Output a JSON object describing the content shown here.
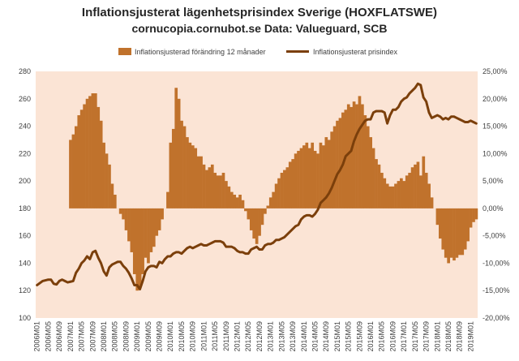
{
  "chart_data": {
    "type": "bar+line",
    "title": "Inflationsjusterat lägenhetsprisindex Sverige (HOXFLATSWE)",
    "subtitle": "cornucopia.cornubot.se Data: Valueguard, SCB",
    "legend": {
      "position": "top",
      "items": [
        {
          "label": "Inflationsjusterad förändring 12 månader",
          "color": "#c0722c",
          "kind": "bar"
        },
        {
          "label": "Inflationsjusterat prisindex",
          "color": "#7b3f0b",
          "kind": "line"
        }
      ]
    },
    "y_left": {
      "min": 100,
      "max": 280,
      "ticks": [
        "100",
        "120",
        "140",
        "160",
        "180",
        "200",
        "220",
        "240",
        "260",
        "280"
      ]
    },
    "y_right": {
      "min": -20,
      "max": 25,
      "ticks": [
        "-20,00%",
        "-15,00%",
        "-10,00%",
        "-5,00%",
        "0,00%",
        "5,00%",
        "10,00%",
        "15,00%",
        "20,00%",
        "25,00%"
      ]
    },
    "x_start": {
      "year": 2006,
      "month": 1
    },
    "x_tick_labels": [
      "2006M01",
      "2006M05",
      "2006M09",
      "2007M01",
      "2007M05",
      "2007M09",
      "2008M01",
      "2008M05",
      "2008M09",
      "2009M01",
      "2009M05",
      "2009M09",
      "2010M01",
      "2010M05",
      "2010M09",
      "2011M01",
      "2011M05",
      "2011M09",
      "2012M01",
      "2012M05",
      "2012M09",
      "2013M01",
      "2013M05",
      "2013M09",
      "2014M01",
      "2014M05",
      "2014M09",
      "2015M01",
      "2015M05",
      "2015M09",
      "2016M01",
      "2016M05",
      "2016M09",
      "2017M01",
      "2017M05",
      "2017M09",
      "2018M01",
      "2018M05",
      "2018M09",
      "2019M01"
    ],
    "series": [
      {
        "name": "Inflationsjusterad förändring 12 månader",
        "axis": "right",
        "unit": "%",
        "values": [
          null,
          null,
          null,
          null,
          null,
          null,
          null,
          null,
          null,
          null,
          null,
          null,
          12.5,
          13.5,
          15,
          17,
          18,
          19,
          20,
          20.5,
          21,
          21,
          18.5,
          16,
          12,
          10,
          8,
          4.5,
          2.5,
          0,
          -1,
          -2,
          -4,
          -6,
          -8,
          -12,
          -15,
          -14.5,
          -12,
          -9,
          -10,
          -8,
          -7,
          -5,
          -4,
          -2,
          0,
          3,
          12,
          14.5,
          22,
          20,
          16,
          15,
          13,
          12,
          11.5,
          11,
          9.5,
          9.5,
          8,
          7,
          7.5,
          8,
          6.5,
          6,
          6,
          6.5,
          5,
          4,
          3,
          2.5,
          2,
          2.5,
          1.5,
          -0.5,
          -2,
          -4,
          -5.5,
          -6.5,
          -5,
          -3,
          -1,
          0.5,
          2,
          3,
          4.5,
          5.5,
          6.5,
          7,
          7.5,
          8.5,
          9,
          10,
          10.5,
          11,
          11.5,
          12,
          11,
          12,
          10.5,
          10,
          12,
          11.5,
          13,
          12.5,
          14,
          15,
          16,
          16.5,
          17.5,
          18,
          19,
          18.5,
          19.5,
          19,
          20.5,
          19,
          17,
          15,
          13,
          11,
          9,
          8,
          6.5,
          5.5,
          4.5,
          4,
          4,
          4.5,
          5,
          5.5,
          5,
          6,
          6.5,
          7.5,
          8,
          8.5,
          6,
          9.5,
          6.5,
          4.5,
          2,
          0,
          -3,
          -5.5,
          -7.5,
          -9,
          -10,
          -9,
          -9.5,
          -9,
          -8.5,
          -8.5,
          -7.5,
          -6,
          -3.5,
          -2.5,
          -2
        ]
      },
      {
        "name": "Inflationsjusterat prisindex",
        "axis": "left",
        "values": [
          124,
          125.5,
          127,
          127.5,
          128,
          128,
          125,
          124.5,
          127,
          128,
          127,
          126,
          126.5,
          127,
          133,
          136,
          140,
          142,
          145,
          143,
          148,
          149,
          144,
          140,
          134,
          131,
          137,
          139,
          140,
          141,
          141,
          138,
          136,
          133,
          129,
          124,
          124,
          121,
          127,
          134,
          137,
          138,
          138,
          137,
          141,
          140,
          143,
          145,
          145,
          147,
          148,
          148,
          147,
          149,
          151,
          152,
          151,
          152,
          153,
          154,
          153,
          153,
          154,
          155,
          156,
          156,
          156,
          155,
          152,
          152,
          152,
          151,
          149,
          148,
          148,
          147,
          147,
          150,
          151,
          152,
          150,
          150,
          153,
          154,
          154,
          155,
          157,
          157,
          158,
          159,
          161,
          163,
          165,
          167,
          168,
          172,
          174,
          175,
          175,
          174,
          176,
          179,
          184,
          186,
          188,
          191,
          195,
          200,
          205,
          208,
          212,
          218,
          220,
          222,
          229,
          234,
          238,
          241,
          244,
          245,
          245,
          250,
          251,
          251,
          251,
          250,
          242,
          248,
          252,
          252,
          254,
          258,
          260,
          261,
          264,
          266,
          268,
          271,
          270,
          261,
          258,
          250,
          246,
          247,
          248,
          247,
          245,
          246,
          245,
          247,
          247,
          246,
          245,
          244,
          243,
          243,
          244,
          243,
          242
        ]
      }
    ]
  }
}
